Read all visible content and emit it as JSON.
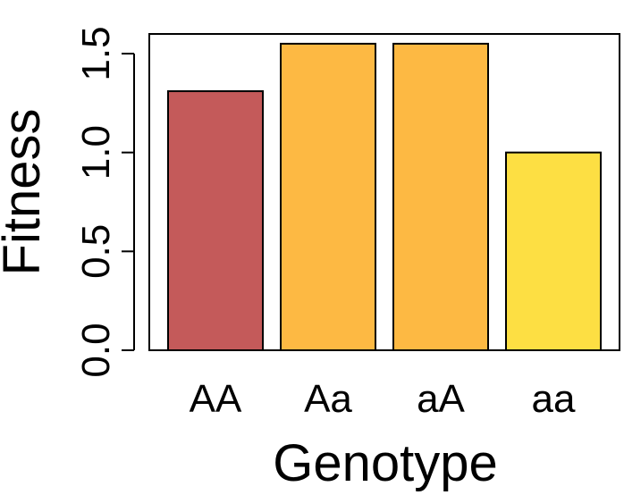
{
  "chart_data": {
    "type": "bar",
    "title": "",
    "xlabel": "Genotype",
    "ylabel": "Fitness",
    "categories": [
      "AA",
      "Aa",
      "aA",
      "aa"
    ],
    "values": [
      1.31,
      1.55,
      1.55,
      1.0
    ],
    "colors": [
      "#c45a5a",
      "#fdb943",
      "#fdb943",
      "#fddf43"
    ],
    "ylim": [
      0,
      1.6
    ],
    "yticks": [
      0.0,
      0.5,
      1.0,
      1.5
    ],
    "ytick_labels": [
      "0.0",
      "0.5",
      "1.0",
      "1.5"
    ],
    "grid": false,
    "legend": false
  }
}
